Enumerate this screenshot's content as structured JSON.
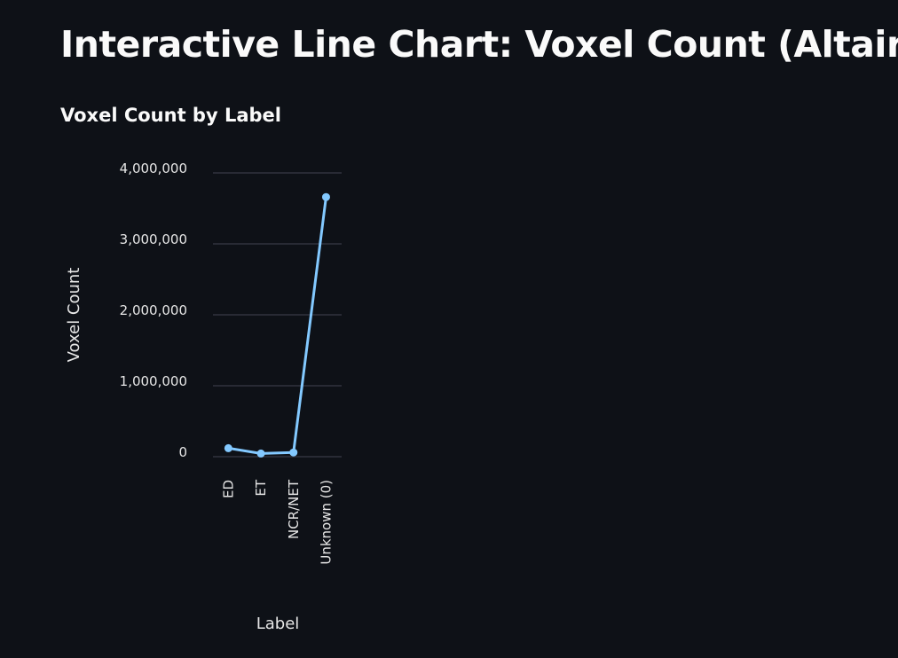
{
  "page": {
    "title": "Interactive Line Chart: Voxel Count (Altair)"
  },
  "chart_data": {
    "type": "line",
    "title": "Voxel Count by Label",
    "xlabel": "Label",
    "ylabel": "Voxel Count",
    "categories": [
      "ED",
      "ET",
      "NCR/NET",
      "Unknown (0)"
    ],
    "series": [
      {
        "values": [
          120000,
          45000,
          60000,
          3660000
        ],
        "color": "#83c9ff"
      }
    ],
    "ylim": [
      0,
      4000000
    ],
    "yticks": [
      0,
      1000000,
      2000000,
      3000000,
      4000000
    ],
    "grid": true,
    "legend": "none",
    "colors": {
      "background": "#0e1117",
      "grid": "#31333f",
      "text": "#fafafa",
      "line": "#83c9ff"
    }
  }
}
